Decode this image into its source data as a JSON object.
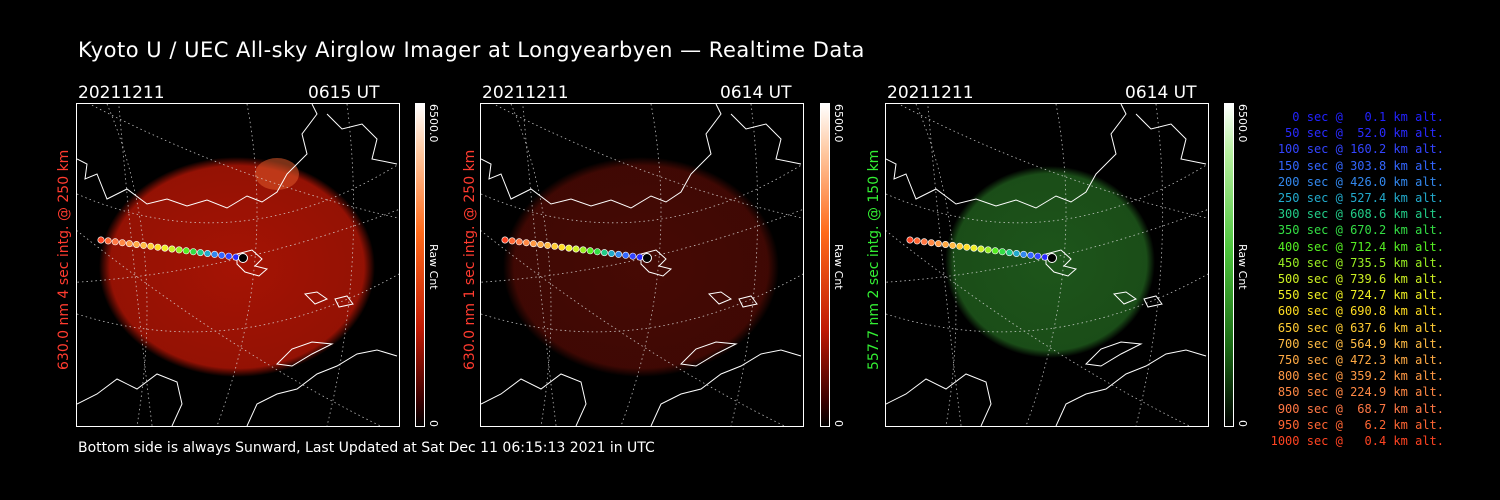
{
  "title": "Kyoto U / UEC All-sky Airglow Imager at Longyearbyen — Realtime Data",
  "footer": "Bottom side is always Sunward, Last Updated at Sat Dec 11 06:15:13 2021 in UTC",
  "panels": [
    {
      "date": "20211211",
      "time": "0615 UT",
      "label": "630.0 nm 4 sec intg. @ 250 km",
      "label_color": "#ff3b2f",
      "cb_max": "6500.0",
      "cb_unit": "Raw Cnt",
      "cb_min": "0",
      "scheme": "red",
      "glow_color": "#b31505",
      "glow_opacity": 0.92
    },
    {
      "date": "20211211",
      "time": "0614 UT",
      "label": "630.0 nm 1 sec intg. @ 250 km",
      "label_color": "#ff3b2f",
      "cb_max": "6500.0",
      "cb_unit": "Raw Cnt",
      "cb_min": "0",
      "scheme": "red",
      "glow_color": "#4a0a04",
      "glow_opacity": 0.95
    },
    {
      "date": "20211211",
      "time": "0614 UT",
      "label": "557.7 nm 2 sec intg. @ 150 km",
      "label_color": "#33ee33",
      "cb_max": "6500.0",
      "cb_unit": "Raw Cnt",
      "cb_min": "0",
      "scheme": "green",
      "glow_color": "#1f5a1c",
      "glow_opacity": 0.95
    }
  ],
  "legend": [
    {
      "text": "0 sec @   0.1 km alt.",
      "color": "#2222ff"
    },
    {
      "text": "50 sec @  52.0 km alt.",
      "color": "#2a2aff"
    },
    {
      "text": "100 sec @ 160.2 km alt.",
      "color": "#3344ff"
    },
    {
      "text": "150 sec @ 303.8 km alt.",
      "color": "#3366ff"
    },
    {
      "text": "200 sec @ 426.0 km alt.",
      "color": "#3388ee"
    },
    {
      "text": "250 sec @ 527.4 km alt.",
      "color": "#22aacc"
    },
    {
      "text": "300 sec @ 608.6 km alt.",
      "color": "#22cc88"
    },
    {
      "text": "350 sec @ 670.2 km alt.",
      "color": "#33dd44"
    },
    {
      "text": "400 sec @ 712.4 km alt.",
      "color": "#55ee22"
    },
    {
      "text": "450 sec @ 735.5 km alt.",
      "color": "#99ee22"
    },
    {
      "text": "500 sec @ 739.6 km alt.",
      "color": "#ccee22"
    },
    {
      "text": "550 sec @ 724.7 km alt.",
      "color": "#eeee22"
    },
    {
      "text": "600 sec @ 690.8 km alt.",
      "color": "#ffdd22"
    },
    {
      "text": "650 sec @ 637.6 km alt.",
      "color": "#ffcc33"
    },
    {
      "text": "700 sec @ 564.9 km alt.",
      "color": "#ffbb44"
    },
    {
      "text": "750 sec @ 472.3 km alt.",
      "color": "#ffaa44"
    },
    {
      "text": "800 sec @ 359.2 km alt.",
      "color": "#ff9944"
    },
    {
      "text": "850 sec @ 224.9 km alt.",
      "color": "#ff8844"
    },
    {
      "text": "900 sec @  68.7 km alt.",
      "color": "#ff7744"
    },
    {
      "text": "950 sec @   6.2 km alt.",
      "color": "#ff6633"
    },
    {
      "text": "1000 sec @   0.4 km alt.",
      "color": "#ff4422"
    }
  ]
}
